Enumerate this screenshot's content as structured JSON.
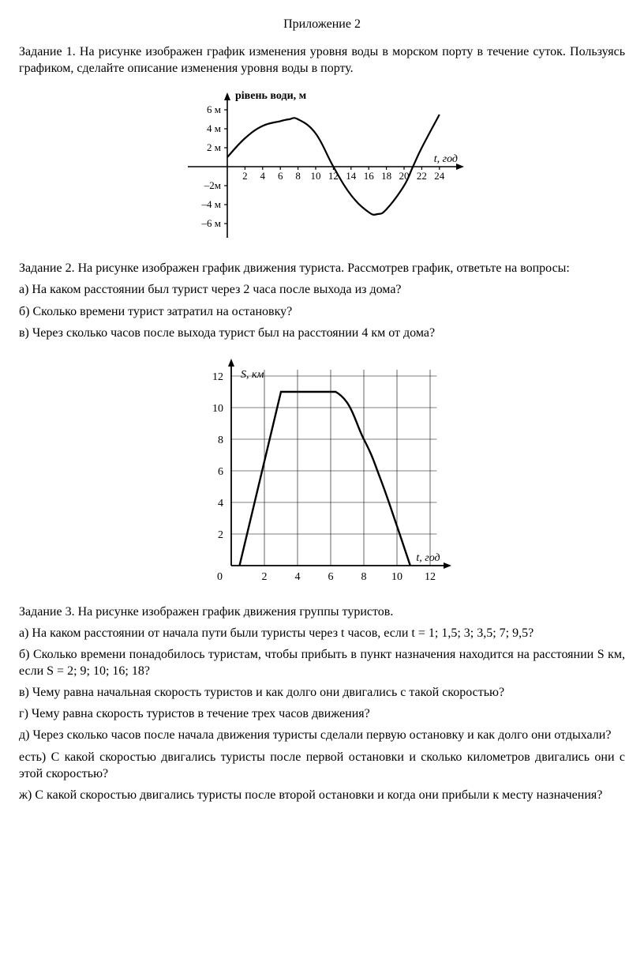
{
  "title": "Приложение 2",
  "task1": {
    "text": "Задание 1. На рисунке изображен график изменения уровня воды в морском порту в течение суток. Пользуясь графиком, сделайте описание изменения уровня воды в порту."
  },
  "chart1": {
    "type": "line",
    "ylabel": "рівень води, м",
    "xlabel": "t, год",
    "yticks": [
      "6 м",
      "4 м",
      "2 м",
      "–2м",
      "–4 м",
      "–6 м"
    ],
    "ytick_vals": [
      6,
      4,
      2,
      -2,
      -4,
      -6
    ],
    "xticks": [
      2,
      4,
      6,
      8,
      10,
      12,
      14,
      16,
      18,
      20,
      22,
      24
    ],
    "data": [
      [
        0,
        1
      ],
      [
        2,
        3
      ],
      [
        4,
        4.3
      ],
      [
        6,
        4.8
      ],
      [
        7,
        5
      ],
      [
        8,
        5
      ],
      [
        10,
        3.5
      ],
      [
        12,
        0
      ],
      [
        14,
        -3
      ],
      [
        16,
        -4.8
      ],
      [
        17,
        -5
      ],
      [
        18,
        -4.5
      ],
      [
        20,
        -2
      ],
      [
        21,
        0
      ],
      [
        22,
        2
      ],
      [
        24,
        5.5
      ]
    ],
    "stroke": "#000000",
    "stroke_width": 2.2,
    "axis_color": "#000000",
    "tick_len": 4,
    "font_size": 13,
    "label_font_size": 14
  },
  "task2": {
    "head": "Задание 2. На рисунке изображен график движения туриста. Рассмотрев график, ответьте на вопросы:",
    "a": "а) На каком расстоянии был турист через 2 часа после выхода из дома?",
    "b": "б) Сколько времени турист затратил на остановку?",
    "c": "в) Через сколько часов после выхода турист был на расстоянии 4 км от дома?"
  },
  "chart2": {
    "type": "line",
    "ylabel": "S, км",
    "xlabel": "t, год",
    "origin_label": "0",
    "yticks": [
      2,
      4,
      6,
      8,
      10,
      12
    ],
    "xticks": [
      2,
      4,
      6,
      8,
      10,
      12
    ],
    "data": [
      [
        0.5,
        0
      ],
      [
        3,
        11
      ],
      [
        6.3,
        11
      ],
      [
        8,
        8
      ],
      [
        9,
        5.5
      ],
      [
        10,
        2.5
      ],
      [
        10.8,
        0
      ]
    ],
    "stroke": "#000000",
    "stroke_width": 2.4,
    "axis_color": "#000000",
    "grid_color": "#000000",
    "grid_width": 0.6,
    "tick_len": 4,
    "font_size": 14
  },
  "task3": {
    "head": "Задание 3. На рисунке изображен график движения группы туристов.",
    "a": "а) На каком расстоянии от начала пути были туристы через t часов, если t = 1; 1,5; 3; 3,5; 7; 9,5?",
    "b": "б) Сколько времени понадобилось туристам, чтобы прибыть в пункт назначения находится на расстоянии S км, если S = 2; 9; 10; 16; 18?",
    "c": "в) Чему равна начальная скорость туристов и как долго они двигались с такой скоростью?",
    "d": "г) Чему равна скорость туристов в течение трех часов движения?",
    "e": "д) Через сколько часов после начала движения туристы сделали первую остановку и как долго они отдыхали?",
    "f": "есть) С какой скоростью двигались туристы после первой остановки и сколько километров двигались они с этой скоростью?",
    "g": "ж) С какой скоростью двигались туристы после второй остановки и когда они прибыли к месту назначения?"
  }
}
